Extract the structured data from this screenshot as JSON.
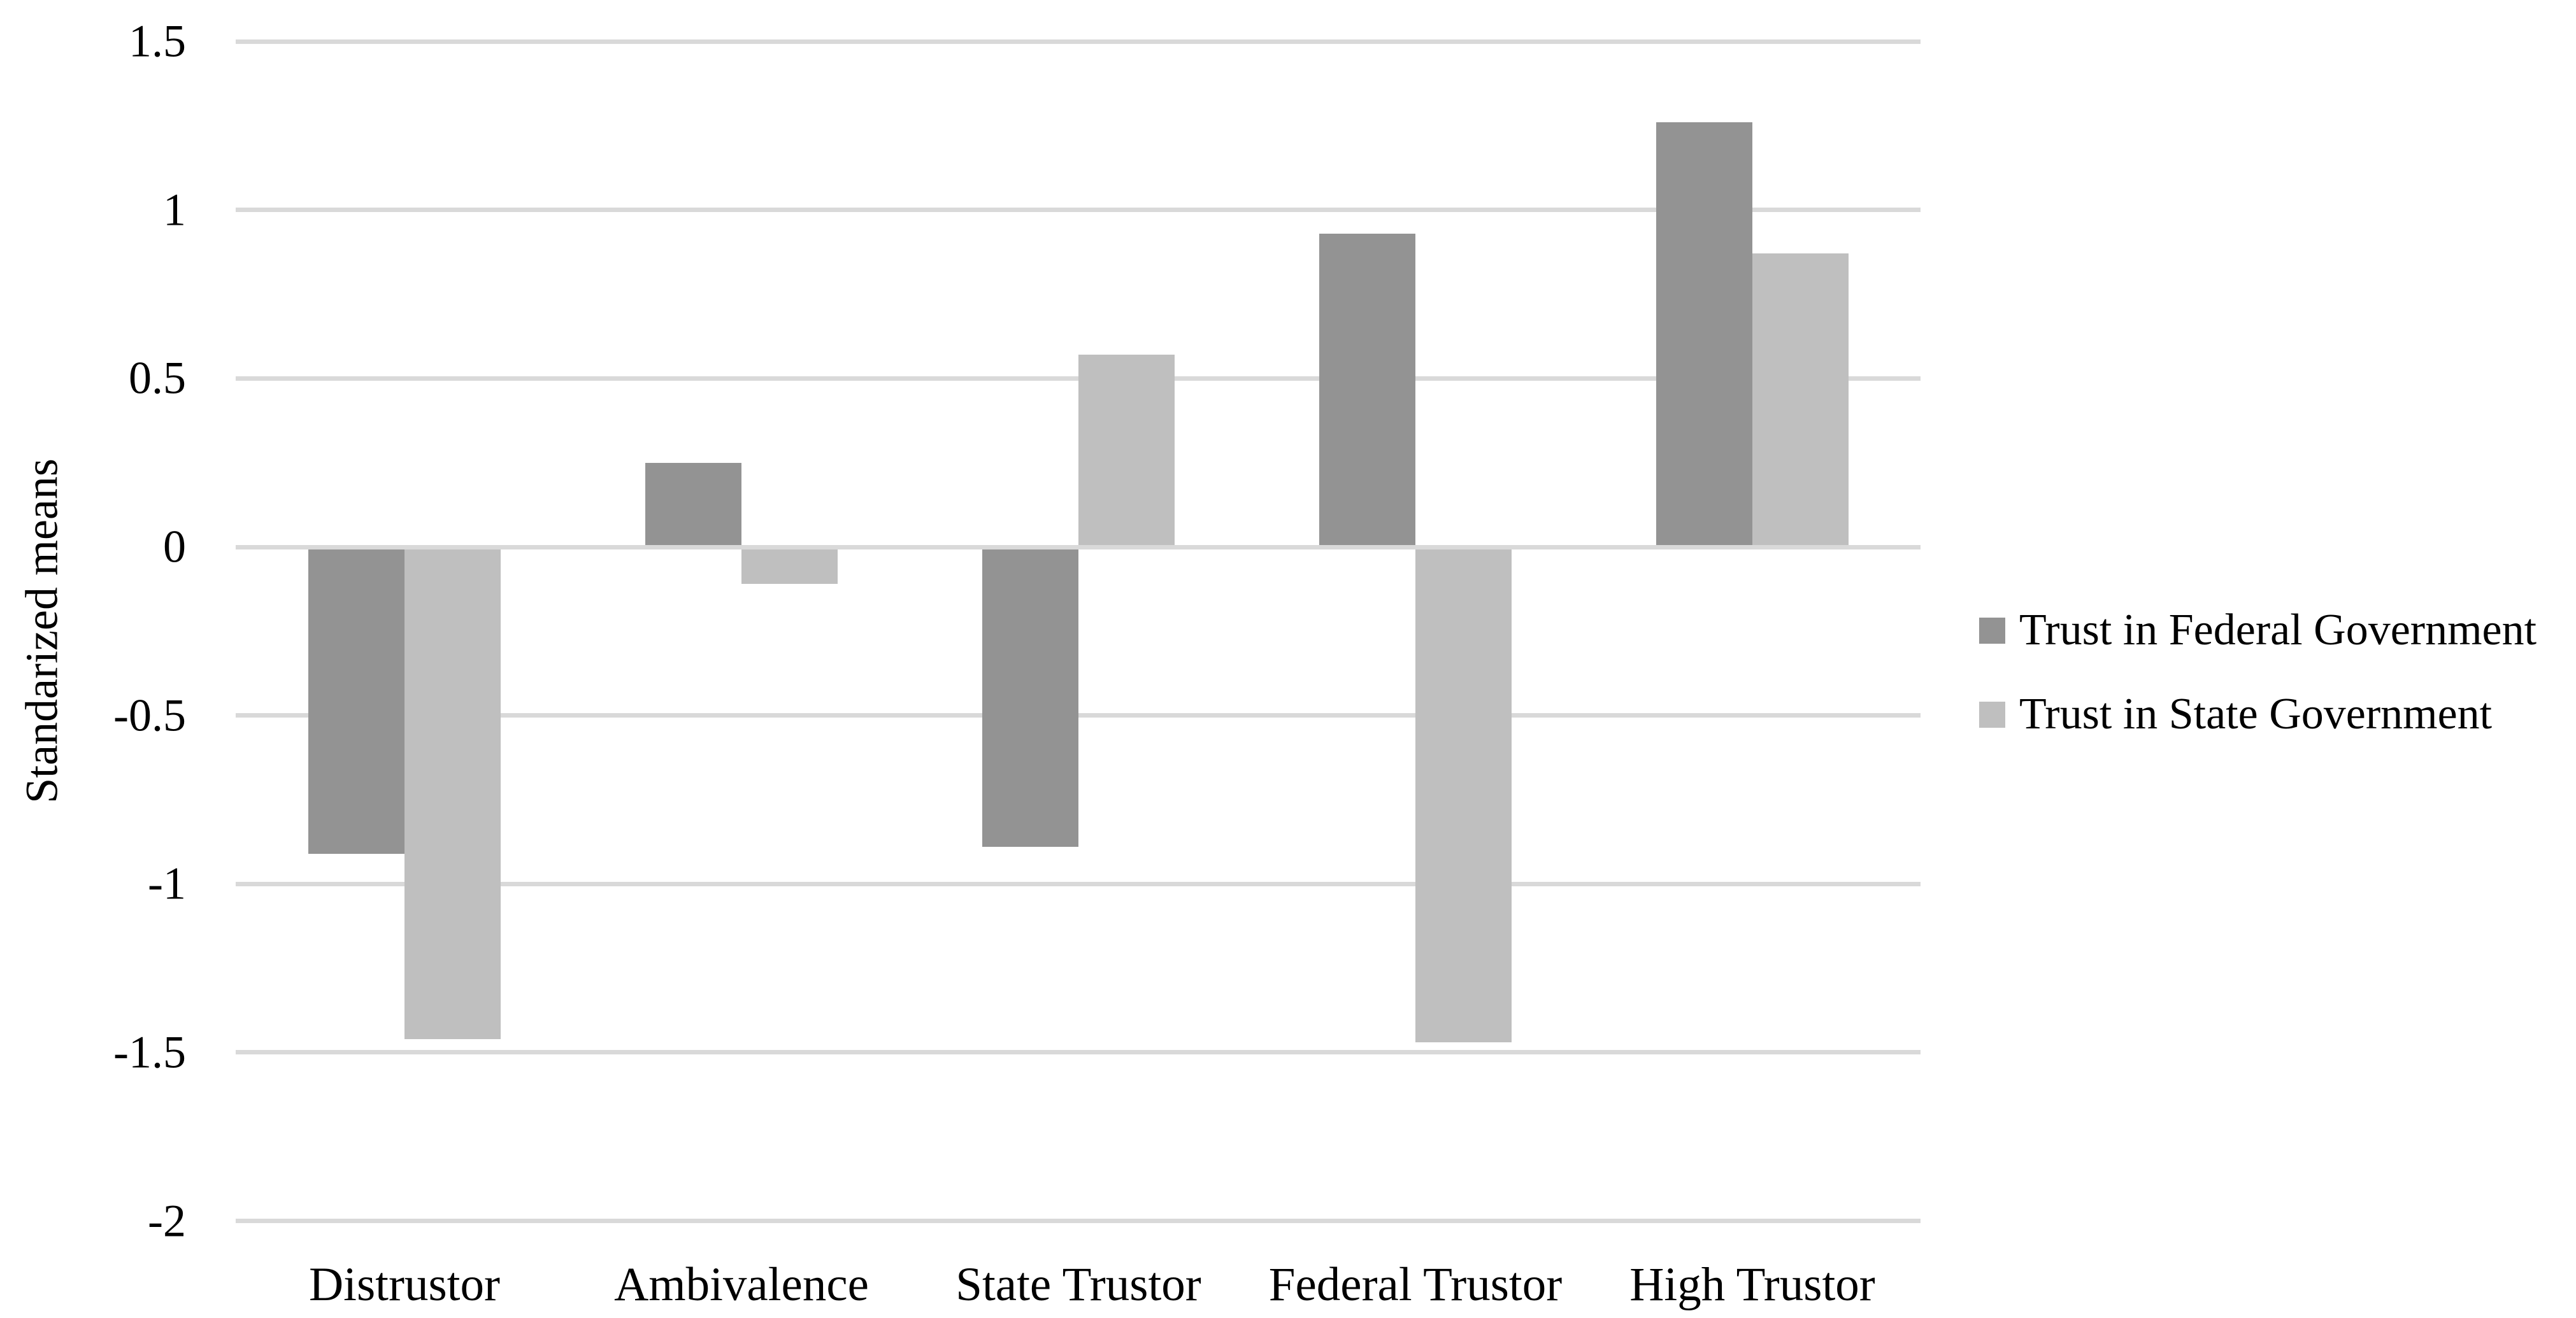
{
  "chart_data": {
    "type": "bar",
    "title": "",
    "ylabel": "Standarized means",
    "xlabel": "",
    "categories": [
      "Distrustor",
      "Ambivalence",
      "State Trustor",
      "Federal Trustor",
      "High Trustor"
    ],
    "series": [
      {
        "name": "Trust in Federal Government",
        "color": "#939393",
        "values": [
          -0.91,
          0.25,
          -0.89,
          0.93,
          1.26
        ]
      },
      {
        "name": "Trust in State Government",
        "color": "#BFBFBF",
        "values": [
          -1.46,
          -0.11,
          0.57,
          -1.47,
          0.87
        ]
      }
    ],
    "ylim": [
      -2,
      1.5
    ],
    "y_ticks": [
      1.5,
      1,
      0.5,
      0,
      -0.5,
      -1,
      -1.5,
      -2
    ],
    "y_tick_labels": [
      "1.5",
      "1",
      "0.5",
      "0",
      "-0.5",
      "-1",
      "-1.5",
      "-2"
    ],
    "grid": true,
    "legend_position": "right",
    "background": "#FFFFFF",
    "gridline_color": "#D9D9D9",
    "text_color": "#000000"
  }
}
